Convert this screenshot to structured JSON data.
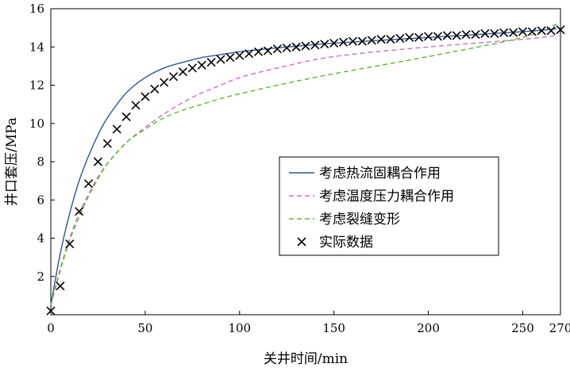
{
  "chart_data": {
    "type": "line",
    "xlabel": "关井时间/min",
    "ylabel": "井口套压/MPa",
    "xlim": [
      0,
      270
    ],
    "ylim": [
      0,
      16
    ],
    "x_ticks": [
      0,
      50,
      100,
      150,
      200,
      250,
      270
    ],
    "x_tick_labels": [
      "0",
      "50",
      "100",
      "150",
      "200",
      "250",
      "270"
    ],
    "y_ticks": [
      2,
      4,
      6,
      8,
      10,
      12,
      14,
      16
    ],
    "y_tick_labels": [
      "2",
      "4",
      "6",
      "8",
      "10",
      "12",
      "14",
      "16"
    ],
    "grid": false,
    "legend_position": "center-right",
    "series": [
      {
        "name": "考虑热流固耦合作用",
        "style": "solid",
        "color": "#2f5597",
        "x": [
          0,
          5,
          10,
          15,
          20,
          25,
          30,
          40,
          50,
          60,
          70,
          80,
          90,
          100,
          120,
          150,
          200,
          250,
          268
        ],
        "y": [
          0.5,
          3.2,
          5.3,
          7.0,
          8.3,
          9.4,
          10.3,
          11.6,
          12.4,
          12.9,
          13.2,
          13.45,
          13.6,
          13.75,
          13.95,
          14.2,
          14.5,
          14.8,
          14.95
        ]
      },
      {
        "name": "考虑温度压力耦合作用",
        "style": "dashed",
        "color": "#c96fc8",
        "x": [
          0,
          5,
          10,
          15,
          20,
          25,
          30,
          40,
          50,
          60,
          70,
          80,
          90,
          100,
          120,
          150,
          200,
          250,
          268
        ],
        "y": [
          0.5,
          2.4,
          4.0,
          5.3,
          6.3,
          7.2,
          7.9,
          9.0,
          9.8,
          10.5,
          11.1,
          11.6,
          12.0,
          12.4,
          12.9,
          13.5,
          14.0,
          14.4,
          14.6
        ]
      },
      {
        "name": "考虑裂缝变形",
        "style": "dashed",
        "color": "#5cb82f",
        "x": [
          0,
          5,
          10,
          15,
          20,
          25,
          30,
          40,
          50,
          60,
          70,
          80,
          90,
          100,
          120,
          150,
          200,
          250,
          268
        ],
        "y": [
          0.5,
          2.3,
          3.9,
          5.1,
          6.2,
          7.1,
          7.9,
          9.0,
          9.7,
          10.3,
          10.7,
          11.0,
          11.3,
          11.55,
          12.0,
          12.6,
          13.5,
          14.5,
          15.2
        ]
      },
      {
        "name": "实际数据",
        "style": "marker",
        "color": "#000000",
        "x": [
          0,
          5,
          10,
          15,
          20,
          25,
          30,
          35,
          40,
          45,
          50,
          55,
          60,
          65,
          70,
          75,
          80,
          85,
          90,
          95,
          100,
          105,
          110,
          115,
          120,
          125,
          130,
          135,
          140,
          145,
          150,
          155,
          160,
          165,
          170,
          175,
          180,
          185,
          190,
          195,
          200,
          205,
          210,
          215,
          220,
          225,
          230,
          235,
          240,
          245,
          250,
          255,
          260,
          265,
          270
        ],
        "y": [
          0.2,
          1.5,
          3.7,
          5.4,
          6.85,
          8.0,
          8.95,
          9.7,
          10.35,
          10.95,
          11.4,
          11.8,
          12.15,
          12.45,
          12.7,
          12.9,
          13.05,
          13.2,
          13.35,
          13.45,
          13.55,
          13.65,
          13.75,
          13.8,
          13.9,
          13.95,
          14.0,
          14.05,
          14.1,
          14.15,
          14.2,
          14.25,
          14.3,
          14.3,
          14.35,
          14.4,
          14.4,
          14.45,
          14.5,
          14.5,
          14.55,
          14.55,
          14.6,
          14.6,
          14.65,
          14.65,
          14.7,
          14.7,
          14.75,
          14.75,
          14.8,
          14.8,
          14.85,
          14.85,
          14.9
        ]
      }
    ]
  }
}
